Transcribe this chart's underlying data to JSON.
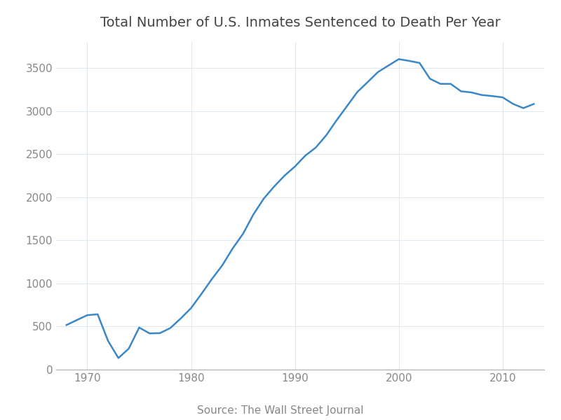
{
  "years": [
    1968,
    1969,
    1970,
    1971,
    1972,
    1973,
    1974,
    1975,
    1976,
    1977,
    1978,
    1979,
    1980,
    1981,
    1982,
    1983,
    1984,
    1985,
    1986,
    1987,
    1988,
    1989,
    1990,
    1991,
    1992,
    1993,
    1994,
    1995,
    1996,
    1997,
    1998,
    1999,
    2000,
    2001,
    2002,
    2003,
    2004,
    2005,
    2006,
    2007,
    2008,
    2009,
    2010,
    2011,
    2012,
    2013
  ],
  "values": [
    517,
    575,
    631,
    642,
    334,
    134,
    244,
    488,
    420,
    423,
    482,
    593,
    714,
    879,
    1050,
    1209,
    1405,
    1575,
    1800,
    1984,
    2124,
    2250,
    2356,
    2482,
    2575,
    2716,
    2890,
    3054,
    3219,
    3335,
    3452,
    3527,
    3601,
    3581,
    3557,
    3374,
    3315,
    3314,
    3228,
    3215,
    3185,
    3173,
    3158,
    3082,
    3033,
    3081
  ],
  "line_color": "#3a87c8",
  "line_width": 1.8,
  "title": "Total Number of U.S. Inmates Sentenced to Death Per Year",
  "title_fontsize": 14,
  "source_text": "Source: The Wall Street Journal",
  "source_fontsize": 11,
  "xlim": [
    1967,
    2014
  ],
  "ylim": [
    0,
    3800
  ],
  "yticks": [
    0,
    500,
    1000,
    1500,
    2000,
    2500,
    3000,
    3500
  ],
  "xticks": [
    1970,
    1980,
    1990,
    2000,
    2010
  ],
  "grid_color": "#dce8f0",
  "bg_color": "#ffffff",
  "tick_label_fontsize": 11,
  "tick_label_color": "#888888",
  "title_color": "#444444",
  "source_color": "#888888",
  "spine_color": "#aaaaaa"
}
